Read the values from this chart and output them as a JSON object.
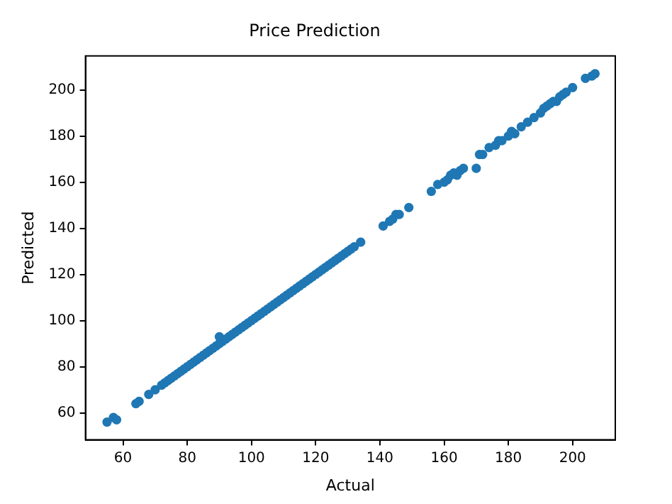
{
  "chart_data": {
    "type": "scatter",
    "title": "Price Prediction",
    "xlabel": "Actual",
    "ylabel": "Predicted",
    "x": [
      55,
      57,
      58,
      64,
      65,
      68,
      70,
      72,
      73,
      74,
      75,
      76,
      77,
      78,
      79,
      80,
      81,
      82,
      83,
      84,
      85,
      86,
      87,
      88,
      89,
      90,
      90,
      91,
      92,
      93,
      94,
      95,
      96,
      97,
      98,
      99,
      100,
      101,
      102,
      103,
      104,
      105,
      106,
      107,
      108,
      109,
      110,
      111,
      112,
      113,
      114,
      115,
      116,
      117,
      118,
      119,
      120,
      121,
      122,
      123,
      124,
      125,
      126,
      127,
      128,
      129,
      130,
      131,
      132,
      134,
      141,
      143,
      144,
      145,
      146,
      149,
      156,
      158,
      160,
      161,
      162,
      163,
      164,
      165,
      166,
      170,
      171,
      172,
      174,
      176,
      177,
      178,
      180,
      181,
      182,
      184,
      186,
      188,
      190,
      191,
      192,
      193,
      194,
      195,
      196,
      197,
      198,
      200,
      204,
      206,
      207
    ],
    "values": [
      56,
      58,
      57,
      64,
      65,
      68,
      70,
      72,
      73,
      74,
      75,
      76,
      77,
      78,
      79,
      80,
      81,
      82,
      83,
      84,
      85,
      86,
      87,
      88,
      89,
      90,
      93,
      91,
      92,
      93,
      94,
      95,
      96,
      97,
      98,
      99,
      100,
      101,
      102,
      103,
      104,
      105,
      106,
      107,
      108,
      109,
      110,
      111,
      112,
      113,
      114,
      115,
      116,
      117,
      118,
      119,
      120,
      121,
      122,
      123,
      124,
      125,
      126,
      127,
      128,
      129,
      130,
      131,
      132,
      134,
      141,
      143,
      144,
      146,
      146,
      149,
      156,
      159,
      160,
      161,
      163,
      164,
      163,
      165,
      166,
      166,
      172,
      172,
      175,
      176,
      178,
      178,
      180,
      182,
      181,
      184,
      186,
      188,
      190,
      192,
      193,
      194,
      195,
      195,
      197,
      198,
      199,
      201,
      205,
      206,
      207
    ],
    "color": "#1f77b4",
    "marker": "circle",
    "xlim": [
      48.3,
      213.3
    ],
    "xticks": [
      60,
      80,
      100,
      120,
      140,
      160,
      180,
      200
    ],
    "ylim": [
      48.3,
      214.7
    ],
    "yticks": [
      60,
      80,
      100,
      120,
      140,
      160,
      180,
      200
    ],
    "grid": false,
    "legend": false
  }
}
